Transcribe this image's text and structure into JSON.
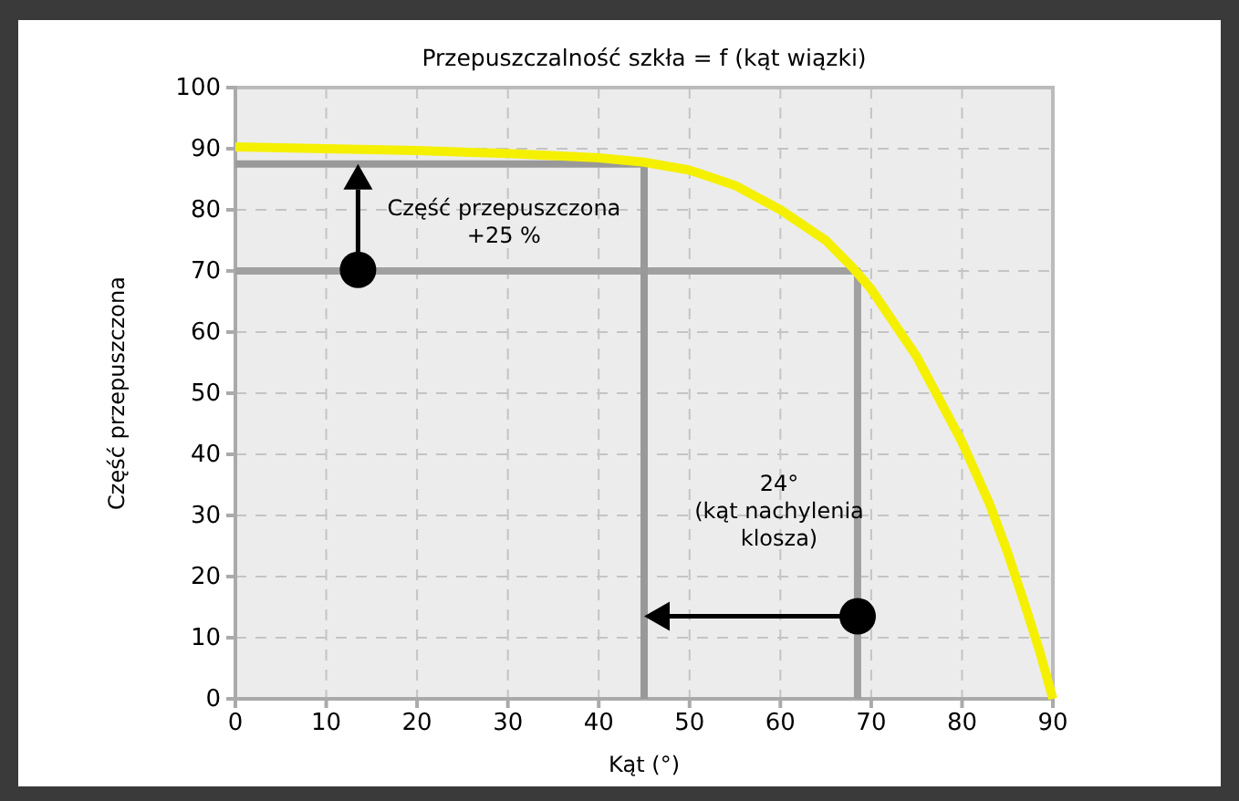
{
  "chart_data": {
    "type": "line",
    "title": "Przepuszczalność szkła = f (kąt wiązki)",
    "xlabel": "Kąt (°)",
    "ylabel": "Część przepuszczona",
    "xlim": [
      0,
      90
    ],
    "xticks": [
      0,
      10,
      20,
      30,
      40,
      50,
      60,
      70,
      80,
      90
    ],
    "ylim": [
      0,
      100
    ],
    "yticks": [
      0,
      10,
      20,
      30,
      40,
      50,
      60,
      70,
      80,
      90,
      100
    ],
    "grid": true,
    "marker": "none",
    "series": [
      {
        "color": "#a0a0a0",
        "x": [
          0,
          68.5,
          68.5
        ],
        "values": [
          70,
          70,
          0
        ]
      },
      {
        "color": "#999999",
        "x": [
          0,
          45,
          45
        ],
        "values": [
          87.5,
          87.5,
          0
        ]
      },
      {
        "color": "#f5f000",
        "x": [
          0,
          10,
          20,
          30,
          40,
          45,
          50,
          55,
          60,
          65,
          68,
          70,
          75,
          80,
          83,
          85,
          87,
          88.5,
          90
        ],
        "values": [
          90.3,
          90,
          89.7,
          89.2,
          88.5,
          87.8,
          86.5,
          84,
          80,
          75,
          70.5,
          67,
          56,
          42,
          32,
          24,
          15,
          8,
          0
        ]
      }
    ],
    "annotations": [
      {
        "text": "Część przepuszczona\n+25 %",
        "x": 13.5,
        "y": 87.5
      },
      "24°\n(kąt nachylenia\nklosza)"
    ]
  }
}
